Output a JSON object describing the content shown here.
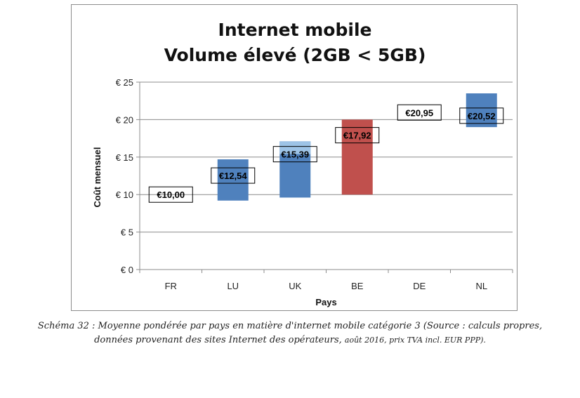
{
  "chart_data": {
    "type": "bar",
    "title": [
      "Internet mobile",
      "Volume élevé (2GB < 5GB)"
    ],
    "xlabel": "Pays",
    "ylabel": "Coût mensuel",
    "ylim": [
      0,
      25
    ],
    "yticks": [
      0,
      5,
      10,
      15,
      20,
      25
    ],
    "ytick_labels": [
      "€ 0",
      "€ 5",
      "€ 10",
      "€ 15",
      "€ 20",
      "€ 25"
    ],
    "grid": true,
    "legend": "none",
    "categories": [
      "FR",
      "LU",
      "UK",
      "BE",
      "DE",
      "NL"
    ],
    "values": [
      10.0,
      12.54,
      15.39,
      17.92,
      20.95,
      20.52
    ],
    "value_labels": [
      "€10,00",
      "€12,54",
      "€15,39",
      "€17,92",
      "€20,95",
      "€20,52"
    ],
    "ranges": [
      null,
      {
        "low": 9.2,
        "high": 14.7,
        "color": "#4f81bd"
      },
      {
        "low": 9.6,
        "high": 17.1,
        "color": "#4f81bd",
        "upper_segment": {
          "low": 15.4,
          "high": 17.1,
          "color": "#9dc3e6"
        }
      },
      {
        "low": 10.0,
        "high": 20.0,
        "color": "#c0504d"
      },
      null,
      {
        "low": 19.0,
        "high": 23.5,
        "color": "#4f81bd"
      }
    ]
  },
  "caption": {
    "line1": "Schéma 32 : Moyenne pondérée par pays en matière d'internet mobile catégorie 3 (Source : calculs propres,",
    "line2_main": "données provenant des sites Internet des opérateurs, ",
    "line2_small": "août 2016, prix TVA incl. EUR PPP)."
  }
}
